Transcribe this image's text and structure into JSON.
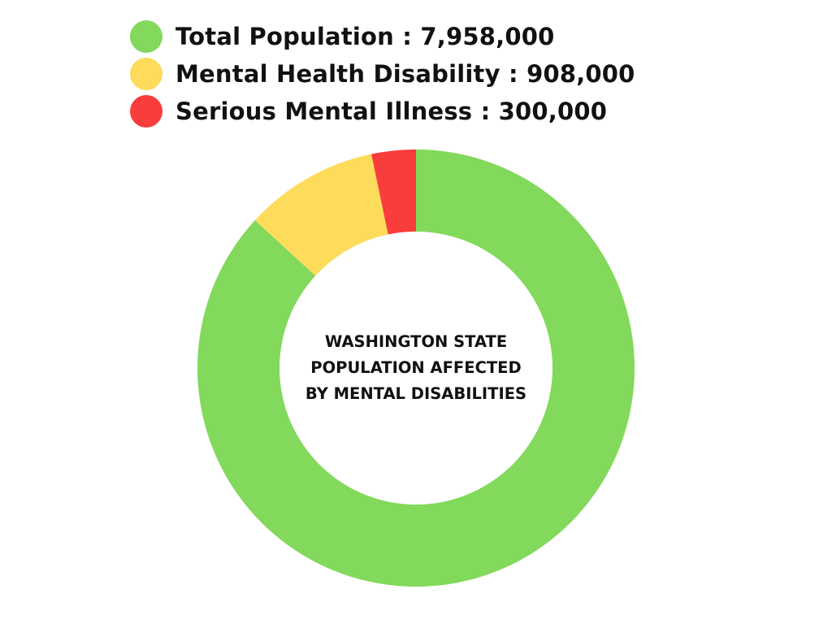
{
  "chart_data": {
    "type": "pie",
    "variant": "donut",
    "title_lines": [
      "WASHINGTON STATE",
      "POPULATION AFFECTED",
      "BY MENTAL DISABILITIES"
    ],
    "legend_placement": "top-left",
    "slices": [
      {
        "name": "Total Population",
        "value": 7958000,
        "value_label": "7,958,000",
        "color": "#82d95b"
      },
      {
        "name": "Mental Health Disability",
        "value": 908000,
        "value_label": "908,000",
        "color": "#fddb5b"
      },
      {
        "name": "Serious Mental Illness",
        "value": 300000,
        "value_label": "300,000",
        "color": "#f93c3c"
      }
    ],
    "legend_separator": " : "
  }
}
